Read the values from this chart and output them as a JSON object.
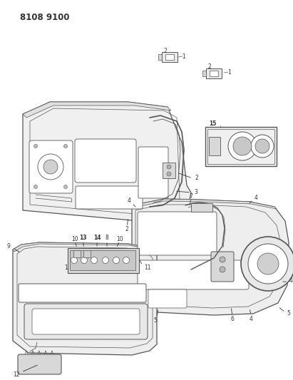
{
  "title": "8108 9100",
  "bg_color": "#ffffff",
  "line_color": "#555555",
  "dark_color": "#333333",
  "fig_width": 4.11,
  "fig_height": 5.33,
  "dpi": 100
}
